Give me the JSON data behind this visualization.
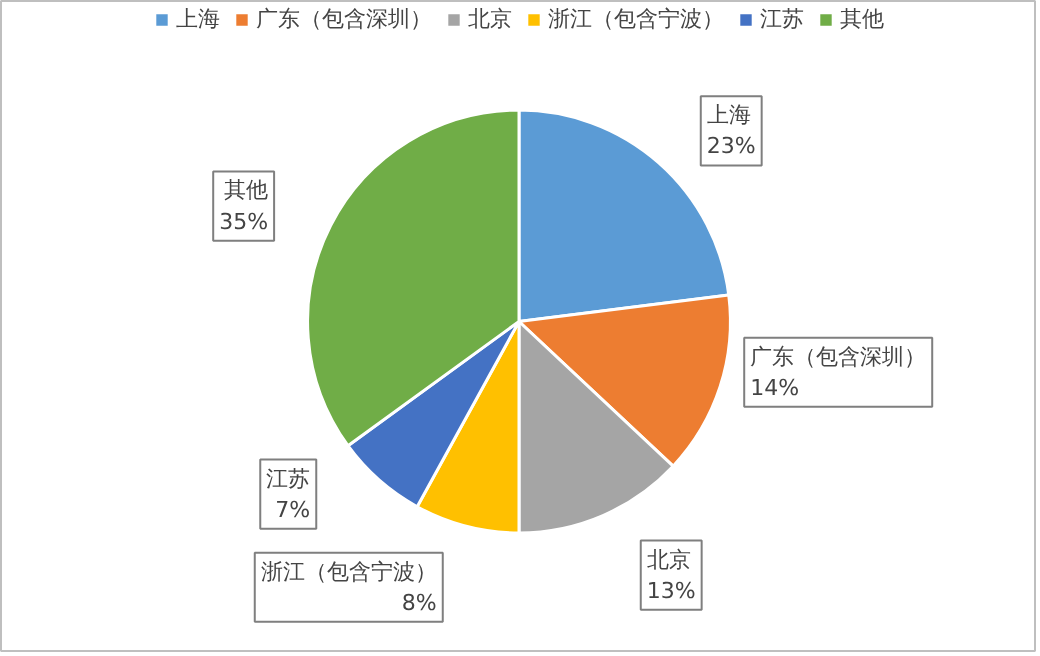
{
  "chart_data": {
    "type": "pie",
    "categories": [
      "上海",
      "广东（包含深圳）",
      "北京",
      "浙江（包含宁波）",
      "江苏",
      "其他"
    ],
    "values": [
      23,
      14,
      13,
      8,
      7,
      35
    ],
    "colors": [
      "#5b9bd5",
      "#ed7d31",
      "#a5a5a5",
      "#ffc000",
      "#4472c4",
      "#70ad47"
    ],
    "value_labels": [
      "23%",
      "14%",
      "13%",
      "8%",
      "7%",
      "35%"
    ],
    "legend": "top"
  }
}
